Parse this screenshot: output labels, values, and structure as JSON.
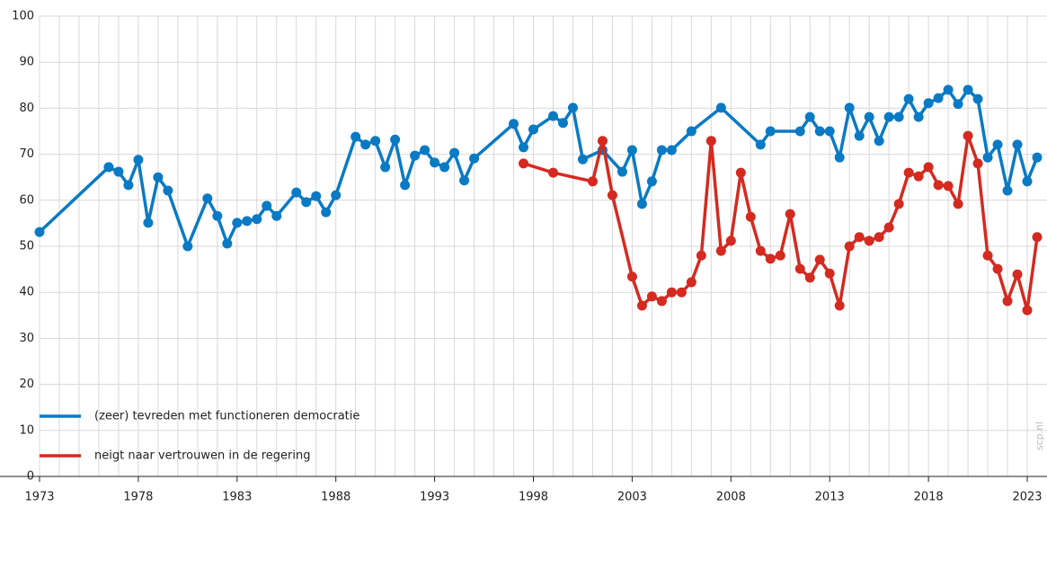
{
  "chart_data": {
    "type": "line",
    "watermark": "scp.nl",
    "xlim": [
      1973,
      2024
    ],
    "ylim": [
      0,
      100
    ],
    "xticks": [
      1973,
      1978,
      1983,
      1988,
      1993,
      1998,
      2003,
      2008,
      2013,
      2018,
      2023
    ],
    "yticks": [
      0,
      10,
      20,
      30,
      40,
      50,
      60,
      70,
      80,
      90,
      100
    ],
    "xgrid_lines": [
      1973,
      1974,
      1975,
      1976,
      1977,
      1978,
      1979,
      1980,
      1981,
      1982,
      1983,
      1984,
      1985,
      1986,
      1987,
      1988,
      1989,
      1990,
      1991,
      1992,
      1993,
      1994,
      1995,
      1996,
      1997,
      1998,
      1999,
      2000,
      2001,
      2002,
      2003,
      2004,
      2005,
      2006,
      2007,
      2008,
      2009,
      2010,
      2011,
      2012,
      2013,
      2014,
      2015,
      2016,
      2017,
      2018,
      2019,
      2020,
      2021,
      2022,
      2023
    ],
    "grid": true,
    "series": [
      {
        "name": "(zeer) tevreden met functioneren democratie",
        "color": "#0a7ac4",
        "x": [
          1973.0,
          1976.5,
          1977.0,
          1977.5,
          1978.0,
          1978.5,
          1979.0,
          1979.5,
          1980.5,
          1981.5,
          1982.0,
          1982.5,
          1983.0,
          1983.5,
          1984.0,
          1984.5,
          1985.0,
          1986.0,
          1986.5,
          1987.0,
          1987.5,
          1988.0,
          1989.0,
          1989.5,
          1990.0,
          1990.5,
          1991.0,
          1991.5,
          1992.0,
          1992.5,
          1993.0,
          1993.5,
          1994.0,
          1994.5,
          1995.0,
          1997.0,
          1997.5,
          1998.0,
          1999.0,
          1999.5,
          2000.0,
          2000.5,
          2001.5,
          2002.5,
          2003.0,
          2003.5,
          2004.0,
          2004.5,
          2005.0,
          2006.0,
          2007.5,
          2009.5,
          2010.0,
          2011.5,
          2012.0,
          2012.5,
          2013.0,
          2013.5,
          2014.0,
          2014.5,
          2015.0,
          2015.5,
          2016.0,
          2016.5,
          2017.0,
          2017.5,
          2018.0,
          2018.5,
          2019.0,
          2019.5,
          2020.0,
          2020.5,
          2021.0,
          2021.5,
          2022.0,
          2022.5,
          2023.0,
          2023.5
        ],
        "values": [
          53.1,
          67.2,
          66.2,
          63.3,
          68.8,
          55.1,
          65.0,
          62.1,
          50.0,
          60.4,
          56.6,
          50.6,
          55.1,
          55.5,
          55.9,
          58.8,
          56.6,
          61.7,
          59.6,
          60.9,
          57.4,
          61.1,
          73.8,
          72.1,
          72.9,
          67.2,
          73.2,
          63.3,
          69.7,
          70.9,
          68.2,
          67.2,
          70.3,
          64.3,
          69.1,
          76.6,
          71.5,
          75.4,
          78.3,
          76.8,
          80.1,
          68.9,
          70.9,
          66.2,
          70.9,
          59.2,
          64.1,
          70.9,
          70.9,
          75.0,
          80.1,
          72.1,
          75.0,
          75.0,
          78.1,
          75.0,
          75.0,
          69.3,
          80.1,
          74.0,
          78.1,
          72.9,
          78.1,
          78.1,
          82.0,
          78.1,
          81.1,
          82.2,
          84.0,
          80.9,
          84.0,
          82.0,
          69.3,
          72.1,
          62.1,
          72.1,
          64.1,
          69.3
        ]
      },
      {
        "name": "neigt naar vertrouwen in de regering",
        "color": "#d42a20",
        "x": [
          1997.5,
          1999.0,
          2001.0,
          2001.5,
          2002.0,
          2003.0,
          2003.5,
          2004.0,
          2004.5,
          2005.0,
          2005.5,
          2006.0,
          2006.5,
          2007.0,
          2007.5,
          2008.0,
          2008.5,
          2009.0,
          2009.5,
          2010.0,
          2010.5,
          2011.0,
          2011.5,
          2012.0,
          2012.5,
          2013.0,
          2013.5,
          2014.0,
          2014.5,
          2015.0,
          2015.5,
          2016.0,
          2016.5,
          2017.0,
          2017.5,
          2018.0,
          2018.5,
          2019.0,
          2019.5,
          2020.0,
          2020.5,
          2021.0,
          2021.5,
          2022.0,
          2022.5,
          2023.0,
          2023.5
        ],
        "values": [
          68.0,
          66.0,
          64.1,
          72.9,
          61.1,
          43.4,
          37.1,
          39.1,
          38.1,
          40.0,
          40.0,
          42.2,
          48.0,
          72.9,
          49.0,
          51.2,
          66.0,
          56.4,
          49.0,
          47.3,
          48.0,
          57.0,
          45.1,
          43.2,
          47.1,
          44.1,
          37.1,
          50.0,
          52.0,
          51.2,
          52.0,
          54.1,
          59.2,
          66.0,
          65.2,
          67.2,
          63.3,
          63.1,
          59.2,
          74.0,
          68.0,
          48.0,
          45.1,
          38.1,
          43.9,
          36.1,
          52.0
        ]
      }
    ]
  }
}
